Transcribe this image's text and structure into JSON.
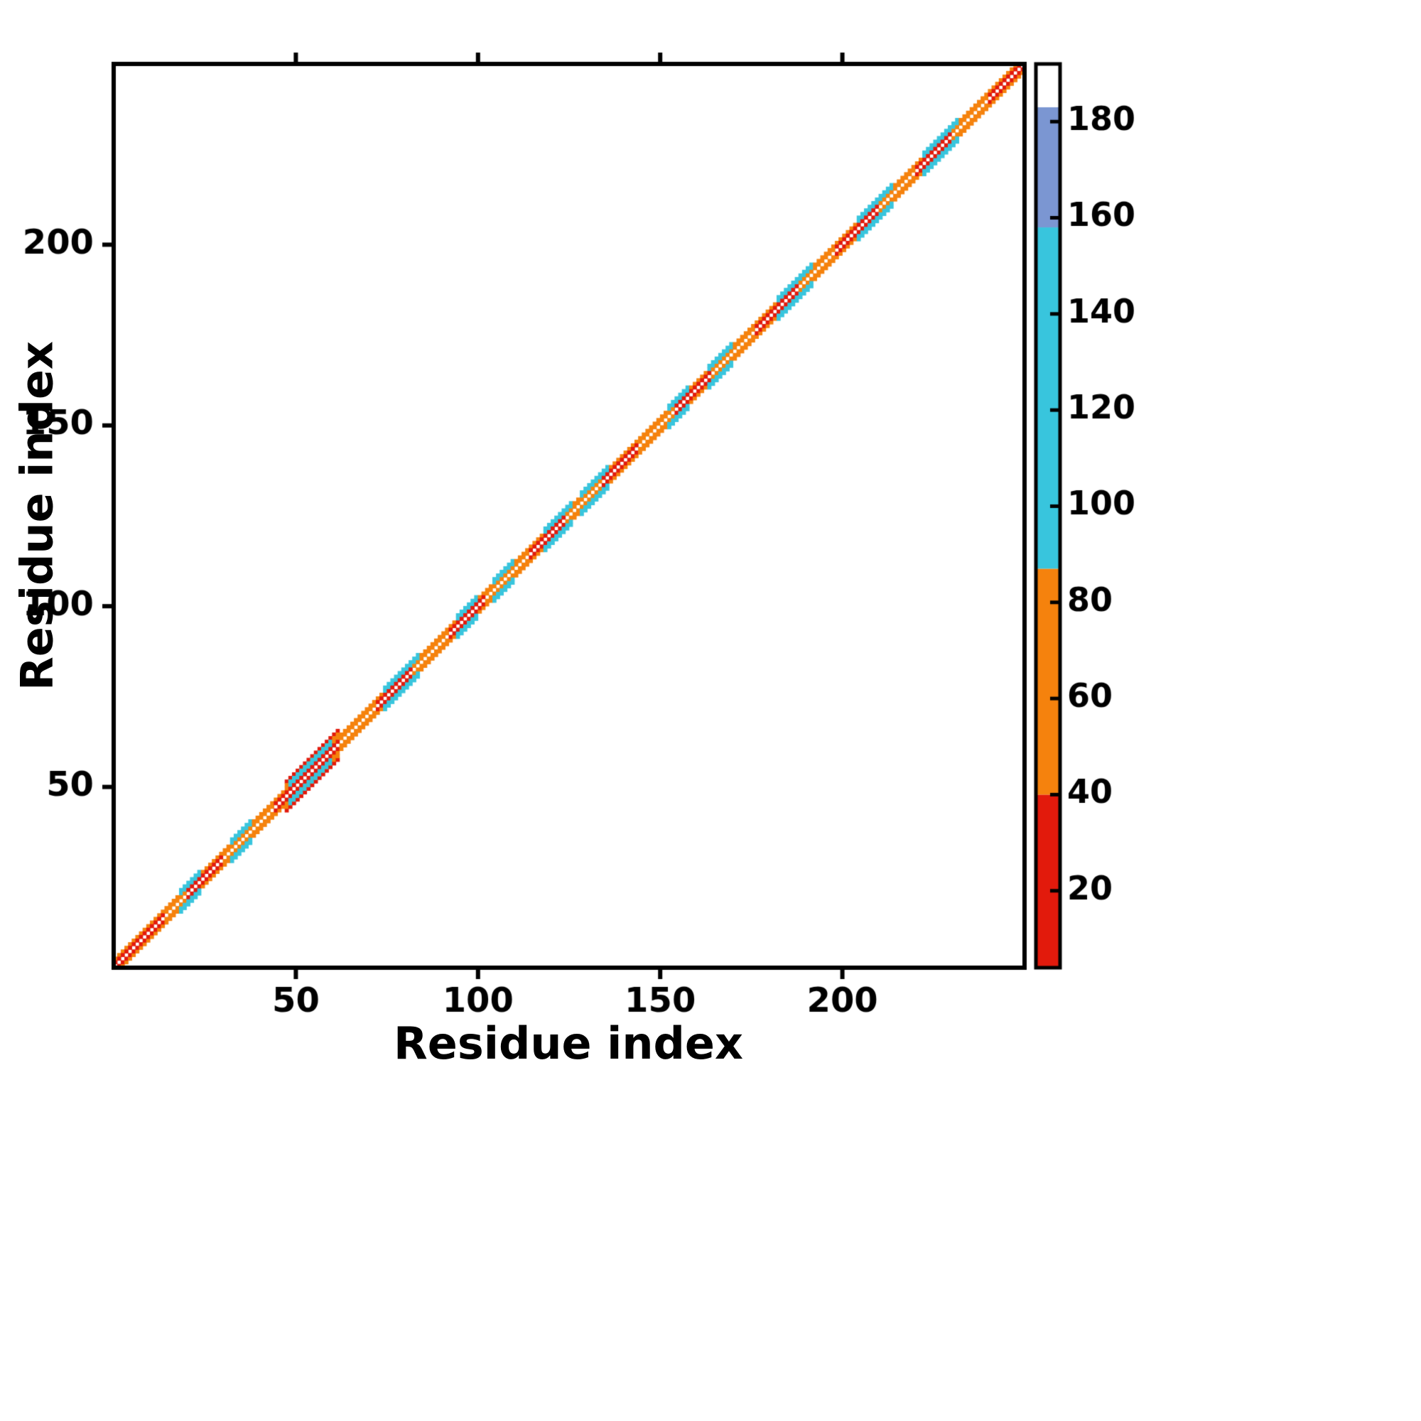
{
  "chart_data": {
    "type": "heatmap",
    "title": "",
    "xlabel": "Residue index",
    "ylabel": "Residue index",
    "axis_range": [
      0,
      250
    ],
    "x_ticks": [
      50,
      100,
      150,
      200
    ],
    "y_ticks": [
      50,
      100,
      150,
      200
    ],
    "grid": false,
    "legend_position": "none",
    "colors": {
      "red": "#e21a0c",
      "orange": "#f5820d",
      "cyan": "#38c5dd",
      "blue": "#7b96d2",
      "white": "#ffffff",
      "frame": "#000000"
    },
    "colorbar": {
      "position": "right",
      "range": [
        4,
        192
      ],
      "ticks": [
        20,
        40,
        60,
        80,
        100,
        120,
        140,
        160,
        180
      ],
      "segments": [
        {
          "from": 4,
          "to": 40,
          "color": "#e21a0c"
        },
        {
          "from": 40,
          "to": 87,
          "color": "#f5820d"
        },
        {
          "from": 87,
          "to": 158,
          "color": "#38c5dd"
        },
        {
          "from": 158,
          "to": 183,
          "color": "#7b96d2"
        },
        {
          "from": 183,
          "to": 192,
          "color": "#ffffff"
        }
      ]
    },
    "diagonal_band": {
      "description": "Residue-residue contact map: contacts only near the main diagonal (|i-j| <= ~4), main diagonal itself left white, inner flank red/orange alternating, outer flank orange with cyan patches",
      "n_residues": 250,
      "inner_segments": [
        [
          0,
          14,
          "red"
        ],
        [
          14,
          20,
          "orange"
        ],
        [
          20,
          30,
          "red"
        ],
        [
          30,
          44,
          "orange"
        ],
        [
          44,
          62,
          "red"
        ],
        [
          62,
          72,
          "orange"
        ],
        [
          72,
          82,
          "red"
        ],
        [
          82,
          92,
          "orange"
        ],
        [
          92,
          102,
          "red"
        ],
        [
          102,
          114,
          "orange"
        ],
        [
          114,
          124,
          "red"
        ],
        [
          124,
          134,
          "orange"
        ],
        [
          134,
          144,
          "red"
        ],
        [
          144,
          154,
          "orange"
        ],
        [
          154,
          164,
          "red"
        ],
        [
          164,
          176,
          "orange"
        ],
        [
          176,
          188,
          "red"
        ],
        [
          188,
          198,
          "orange"
        ],
        [
          198,
          210,
          "red"
        ],
        [
          210,
          220,
          "orange"
        ],
        [
          220,
          230,
          "red"
        ],
        [
          230,
          240,
          "orange"
        ],
        [
          240,
          250,
          "red"
        ]
      ],
      "outer_color": "orange",
      "cyan_patches": [
        [
          18,
          24
        ],
        [
          32,
          38
        ],
        [
          48,
          60
        ],
        [
          74,
          84
        ],
        [
          94,
          100
        ],
        [
          104,
          110
        ],
        [
          118,
          126
        ],
        [
          128,
          136
        ],
        [
          152,
          158
        ],
        [
          163,
          170
        ],
        [
          182,
          192
        ],
        [
          204,
          214
        ],
        [
          222,
          232
        ]
      ],
      "bulges": [
        [
          47,
          62
        ]
      ]
    }
  }
}
